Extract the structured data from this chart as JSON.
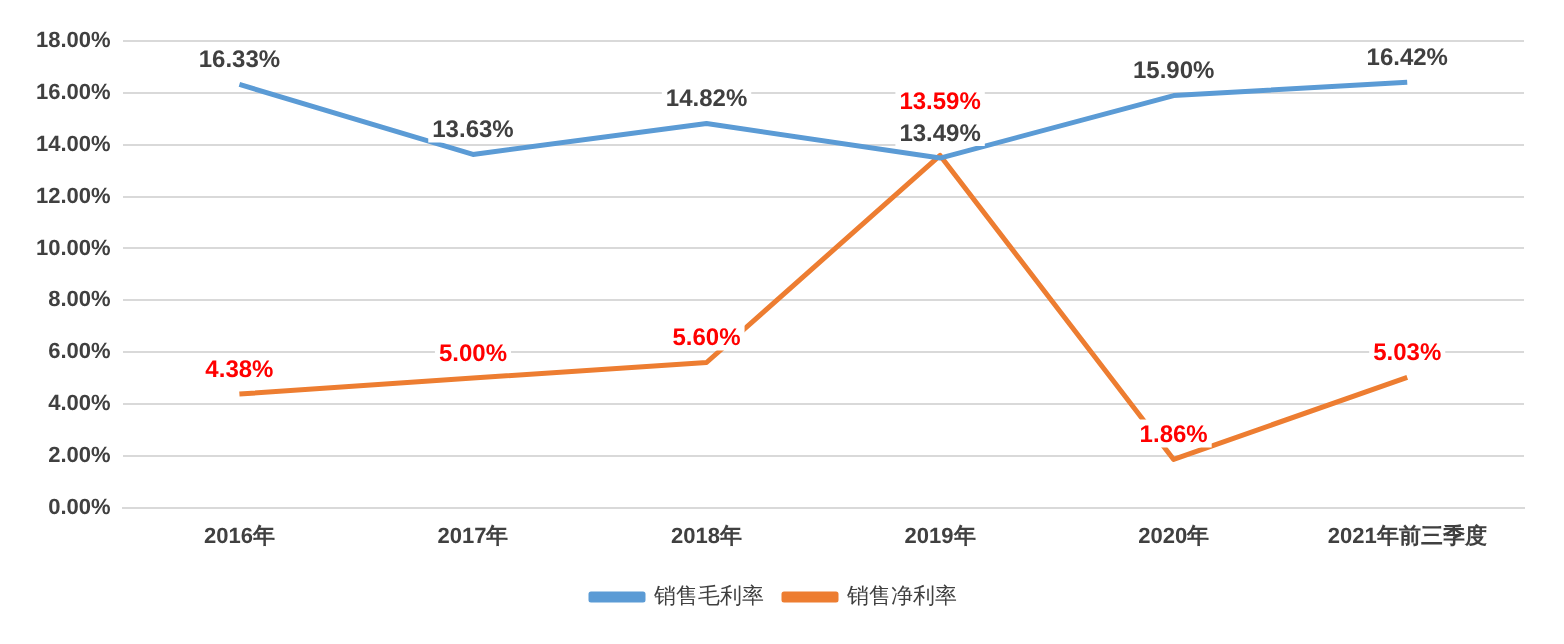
{
  "chart_data": {
    "type": "line",
    "categories": [
      "2016年",
      "2017年",
      "2018年",
      "2019年",
      "2020年",
      "2021年前三季度"
    ],
    "series": [
      {
        "name": "销售毛利率",
        "color": "#5b9bd5",
        "values": [
          16.33,
          13.63,
          14.82,
          13.49,
          15.9,
          16.42
        ],
        "value_labels": [
          "16.33%",
          "13.63%",
          "14.82%",
          "13.49%",
          "15.90%",
          "16.42%"
        ]
      },
      {
        "name": "销售净利率",
        "color": "#ed7d31",
        "values": [
          4.38,
          5.0,
          5.6,
          13.59,
          1.86,
          5.03
        ],
        "value_labels": [
          "4.38%",
          "5.00%",
          "5.60%",
          "13.59%",
          "1.86%",
          "5.03%"
        ]
      }
    ],
    "ylim": [
      0,
      18
    ],
    "yticks": [
      {
        "value": 0,
        "label": "0.00%"
      },
      {
        "value": 2,
        "label": "2.00%"
      },
      {
        "value": 4,
        "label": "4.00%"
      },
      {
        "value": 6,
        "label": "6.00%"
      },
      {
        "value": 8,
        "label": "8.00%"
      },
      {
        "value": 10,
        "label": "10.00%"
      },
      {
        "value": 12,
        "label": "12.00%"
      },
      {
        "value": 14,
        "label": "14.00%"
      },
      {
        "value": 16,
        "label": "16.00%"
      },
      {
        "value": 18,
        "label": "18.00%"
      }
    ],
    "grid": "y",
    "legend": "bottom",
    "marker": "none",
    "line_style": "solid"
  }
}
